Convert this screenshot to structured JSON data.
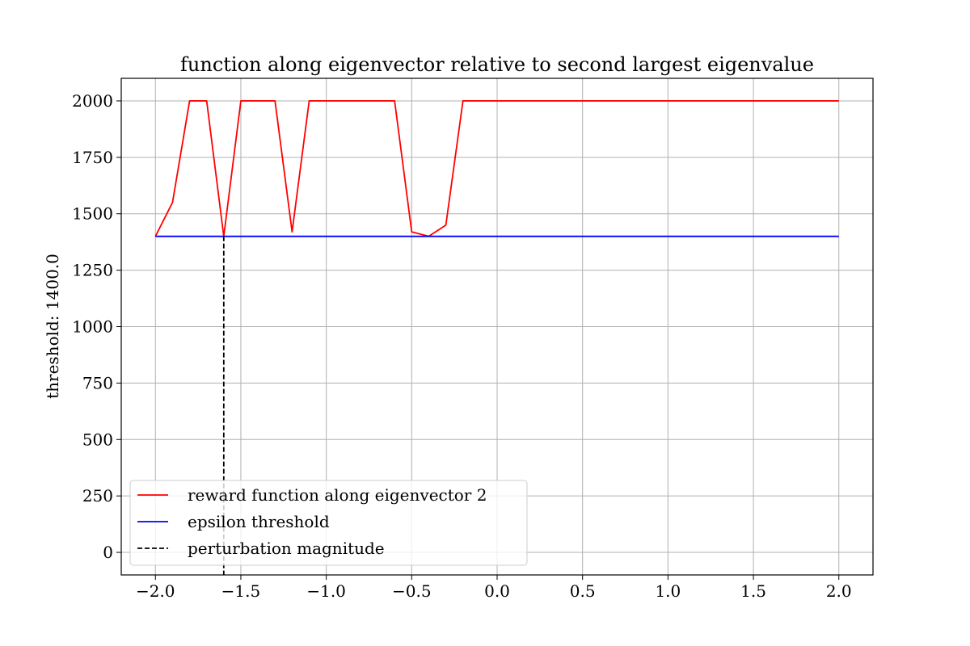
{
  "chart_data": {
    "type": "line",
    "title": "function along eigenvector relative to second largest eigenvalue",
    "xlabel": "",
    "ylabel": "threshold: 1400.0",
    "xlim": [
      -2.2,
      2.2
    ],
    "ylim": [
      -100,
      2100
    ],
    "grid": true,
    "legend_position": "lower-left",
    "x_ticks": [
      -2.0,
      -1.5,
      -1.0,
      -0.5,
      0.0,
      0.5,
      1.0,
      1.5,
      2.0
    ],
    "x_tick_labels": [
      "−2.0",
      "−1.5",
      "−1.0",
      "−0.5",
      "0.0",
      "0.5",
      "1.0",
      "1.5",
      "2.0"
    ],
    "y_ticks": [
      0,
      250,
      500,
      750,
      1000,
      1250,
      1500,
      1750,
      2000
    ],
    "y_tick_labels": [
      "0",
      "250",
      "500",
      "750",
      "1000",
      "1250",
      "1500",
      "1750",
      "2000"
    ],
    "series": [
      {
        "name": "reward function along eigenvector 2",
        "color": "#ff0000",
        "style": "solid",
        "x": [
          -2.0,
          -1.9,
          -1.8,
          -1.7,
          -1.6,
          -1.5,
          -1.4,
          -1.3,
          -1.2,
          -1.1,
          -1.0,
          -0.9,
          -0.8,
          -0.7,
          -0.6,
          -0.5,
          -0.4,
          -0.3,
          -0.2,
          -0.1,
          0.0,
          0.1,
          0.2,
          0.3,
          0.4,
          0.5,
          0.6,
          0.7,
          0.8,
          0.9,
          1.0,
          1.1,
          1.2,
          1.3,
          1.4,
          1.5,
          1.6,
          1.7,
          1.8,
          1.9,
          2.0
        ],
        "y": [
          1400,
          1550,
          2000,
          2000,
          1400,
          2000,
          2000,
          2000,
          1420,
          2000,
          2000,
          2000,
          2000,
          2000,
          2000,
          1420,
          1400,
          1450,
          2000,
          2000,
          2000,
          2000,
          2000,
          2000,
          2000,
          2000,
          2000,
          2000,
          2000,
          2000,
          2000,
          2000,
          2000,
          2000,
          2000,
          2000,
          2000,
          2000,
          2000,
          2000,
          2000
        ]
      },
      {
        "name": "epsilon threshold",
        "color": "#0000ff",
        "style": "solid",
        "x": [
          -2.0,
          2.0
        ],
        "y": [
          1400,
          1400
        ]
      },
      {
        "name": "perturbation magnitude",
        "color": "#000000",
        "style": "dashed",
        "x": [
          -1.6,
          -1.6
        ],
        "y": [
          1400,
          -100
        ]
      }
    ]
  }
}
